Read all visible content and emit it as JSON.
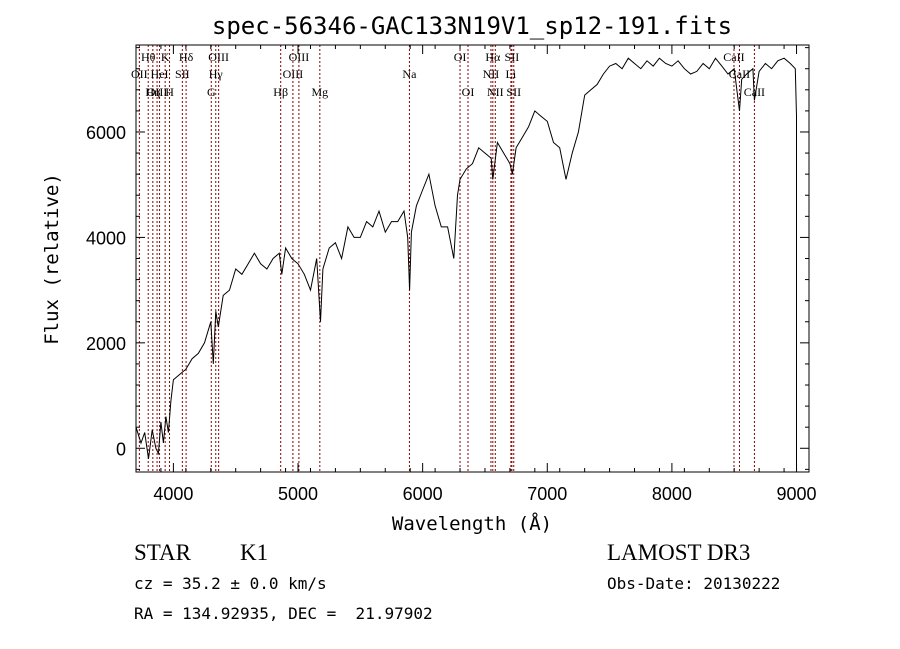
{
  "chart_data": {
    "type": "line",
    "title": "spec-56346-GAC133N19V1_sp12-191.fits",
    "xlabel": "Wavelength (Å)",
    "ylabel": "Flux (relative)",
    "xlim": [
      3700,
      9100
    ],
    "ylim": [
      -450,
      7650
    ],
    "xticks": [
      4000,
      5000,
      6000,
      7000,
      8000,
      9000
    ],
    "yticks": [
      0,
      2000,
      4000,
      6000
    ],
    "line_color": "#000000",
    "marker_color": "#8b0000",
    "series": [
      {
        "name": "flux",
        "x": [
          3700,
          3740,
          3770,
          3800,
          3830,
          3860,
          3880,
          3900,
          3920,
          3940,
          3960,
          3980,
          4000,
          4050,
          4100,
          4150,
          4200,
          4250,
          4300,
          4320,
          4340,
          4360,
          4400,
          4450,
          4500,
          4550,
          4600,
          4650,
          4700,
          4750,
          4800,
          4850,
          4870,
          4900,
          4950,
          5000,
          5050,
          5100,
          5150,
          5180,
          5200,
          5250,
          5300,
          5350,
          5400,
          5450,
          5500,
          5550,
          5600,
          5650,
          5700,
          5750,
          5800,
          5850,
          5880,
          5895,
          5910,
          5950,
          6000,
          6050,
          6100,
          6150,
          6200,
          6250,
          6280,
          6300,
          6350,
          6400,
          6450,
          6500,
          6550,
          6563,
          6600,
          6650,
          6700,
          6720,
          6750,
          6800,
          6850,
          6900,
          6950,
          7000,
          7050,
          7100,
          7150,
          7200,
          7250,
          7300,
          7350,
          7400,
          7450,
          7500,
          7550,
          7600,
          7650,
          7700,
          7750,
          7800,
          7850,
          7900,
          7950,
          8000,
          8050,
          8100,
          8150,
          8200,
          8250,
          8300,
          8350,
          8400,
          8450,
          8500,
          8542,
          8560,
          8600,
          8650,
          8662,
          8700,
          8750,
          8800,
          8850,
          8900,
          8950,
          8990,
          9000
        ],
        "values": [
          400,
          100,
          300,
          -200,
          350,
          0,
          -100,
          500,
          100,
          600,
          300,
          900,
          1300,
          1400,
          1500,
          1700,
          1800,
          2000,
          2400,
          1600,
          2600,
          2300,
          2900,
          3000,
          3400,
          3300,
          3500,
          3700,
          3500,
          3400,
          3600,
          3700,
          3300,
          3800,
          3600,
          3500,
          3300,
          3000,
          3600,
          2400,
          3400,
          3800,
          3900,
          3600,
          4200,
          4000,
          4000,
          4300,
          4200,
          4500,
          4100,
          4300,
          4300,
          4500,
          4000,
          3000,
          4100,
          4600,
          4900,
          5200,
          4600,
          4200,
          4200,
          3600,
          4800,
          5100,
          5300,
          5400,
          5700,
          5600,
          5500,
          5100,
          5800,
          5600,
          5400,
          5200,
          5700,
          5900,
          6100,
          6400,
          6300,
          6200,
          5800,
          5700,
          5100,
          5600,
          6000,
          6700,
          6800,
          6900,
          7100,
          7250,
          7300,
          7200,
          7400,
          7300,
          7200,
          7350,
          7250,
          7400,
          7300,
          7250,
          7350,
          7200,
          7100,
          7150,
          7300,
          7200,
          7400,
          7250,
          7100,
          7200,
          6400,
          7000,
          7100,
          7200,
          6600,
          7150,
          7300,
          7200,
          7350,
          7400,
          7300,
          7200,
          6300
        ]
      }
    ],
    "lines": [
      {
        "label": "Hθ",
        "wavelength": 3798,
        "row": 1
      },
      {
        "label": "OII",
        "wavelength": 3727,
        "row": 2
      },
      {
        "label": "OIII",
        "wavelength": 3869,
        "row": 3
      },
      {
        "label": "Hη",
        "wavelength": 3835,
        "row": 3
      },
      {
        "label": "K",
        "wavelength": 3934,
        "row": 1
      },
      {
        "label": "HeI",
        "wavelength": 3889,
        "row": 2
      },
      {
        "label": "H",
        "wavelength": 3969,
        "row": 3
      },
      {
        "label": "Hδ",
        "wavelength": 4102,
        "row": 1
      },
      {
        "label": "SII",
        "wavelength": 4072,
        "row": 2
      },
      {
        "label": "OIII",
        "wavelength": 4363,
        "row": 1
      },
      {
        "label": "Hγ",
        "wavelength": 4340,
        "row": 2
      },
      {
        "label": "G",
        "wavelength": 4304,
        "row": 3
      },
      {
        "label": "Hβ",
        "wavelength": 4861,
        "row": 3
      },
      {
        "label": "OIII",
        "wavelength": 5007,
        "row": 1
      },
      {
        "label": "OIII",
        "wavelength": 4959,
        "row": 2
      },
      {
        "label": "Mg",
        "wavelength": 5175,
        "row": 3
      },
      {
        "label": "Na",
        "wavelength": 5894,
        "row": 2
      },
      {
        "label": "OI",
        "wavelength": 6300,
        "row": 1
      },
      {
        "label": "OI",
        "wavelength": 6364,
        "row": 3
      },
      {
        "label": "Hα",
        "wavelength": 6563,
        "row": 1
      },
      {
        "label": "SII",
        "wavelength": 6716,
        "row": 1
      },
      {
        "label": "NII",
        "wavelength": 6548,
        "row": 2
      },
      {
        "label": "Li",
        "wavelength": 6708,
        "row": 2
      },
      {
        "label": "NII",
        "wavelength": 6583,
        "row": 3
      },
      {
        "label": "SII",
        "wavelength": 6731,
        "row": 3
      },
      {
        "label": "CaII",
        "wavelength": 8498,
        "row": 1
      },
      {
        "label": "CaII",
        "wavelength": 8542,
        "row": 2
      },
      {
        "label": "CaII",
        "wavelength": 8662,
        "row": 3
      }
    ]
  },
  "info": {
    "object_class": "STAR",
    "subclass": "K1",
    "survey": "LAMOST DR3",
    "cz": "cz = 35.2 ± 0.0 km/s",
    "obs_date": "Obs-Date: 20130222",
    "coords": "RA = 134.92935, DEC =  21.97902"
  }
}
